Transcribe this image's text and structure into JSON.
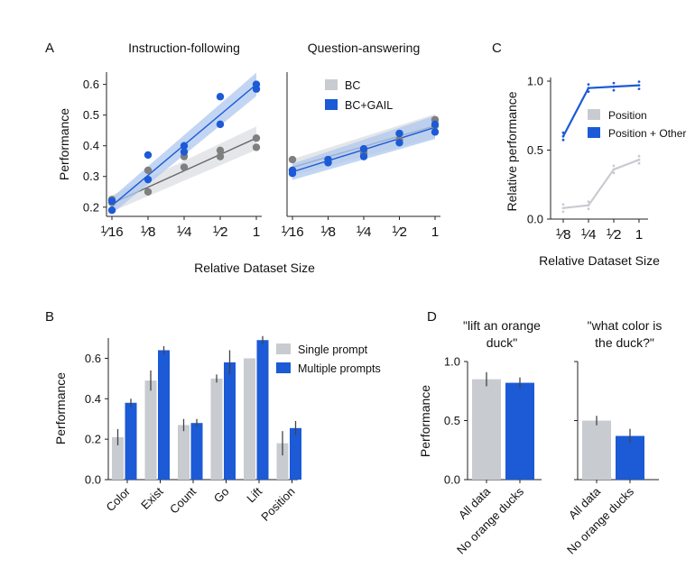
{
  "figure": {
    "x_axis_label_AC": "Relative Dataset Size"
  },
  "colors": {
    "light": "#c8cbd0",
    "blue": "#1c5ad6",
    "grey_dot": "#7f7f7f",
    "band_blue": "#aec8ef",
    "band_grey": "#dcdde1"
  },
  "chart_data": [
    {
      "panel": "A",
      "type": "scatter",
      "title": "Instruction-following",
      "ylabel": "Performance",
      "xscale": "log2",
      "xticks": [
        0.0625,
        0.125,
        0.25,
        0.5,
        1
      ],
      "xtick_labels": [
        "1/16",
        "1/8",
        "1/4",
        "1/2",
        "1"
      ],
      "yticks": [
        0.2,
        0.3,
        0.4,
        0.5,
        0.6
      ],
      "ylim": [
        0.17,
        0.64
      ],
      "series": [
        {
          "name": "BC",
          "color": "#7f7f7f",
          "fit": [
            0.212,
            0.425
          ],
          "points": [
            [
              0.0625,
              0.215
            ],
            [
              0.0625,
              0.225
            ],
            [
              0.125,
              0.25
            ],
            [
              0.125,
              0.32
            ],
            [
              0.25,
              0.33
            ],
            [
              0.25,
              0.365
            ],
            [
              0.5,
              0.365
            ],
            [
              0.5,
              0.385
            ],
            [
              1,
              0.395
            ],
            [
              1,
              0.425
            ]
          ]
        },
        {
          "name": "BC+GAIL",
          "color": "#1c5ad6",
          "fit": [
            0.205,
            0.6
          ],
          "points": [
            [
              0.0625,
              0.19
            ],
            [
              0.0625,
              0.22
            ],
            [
              0.125,
              0.29
            ],
            [
              0.125,
              0.37
            ],
            [
              0.25,
              0.38
            ],
            [
              0.25,
              0.4
            ],
            [
              0.5,
              0.47
            ],
            [
              0.5,
              0.56
            ],
            [
              1,
              0.585
            ],
            [
              1,
              0.6
            ]
          ]
        }
      ]
    },
    {
      "panel": "A",
      "type": "scatter",
      "title": "Question-answering",
      "xscale": "log2",
      "xticks": [
        0.0625,
        0.125,
        0.25,
        0.5,
        1
      ],
      "xtick_labels": [
        "1/16",
        "1/8",
        "1/4",
        "1/2",
        "1"
      ],
      "ylim": [
        0.17,
        0.64
      ],
      "legend": [
        "BC",
        "BC+GAIL"
      ],
      "legend_position": "top-left",
      "series": [
        {
          "name": "BC",
          "color": "#7f7f7f",
          "fit": [
            0.33,
            0.465
          ],
          "points": [
            [
              0.0625,
              0.32
            ],
            [
              0.0625,
              0.355
            ],
            [
              0.125,
              0.345
            ],
            [
              0.125,
              0.355
            ],
            [
              0.25,
              0.375
            ],
            [
              0.25,
              0.385
            ],
            [
              0.5,
              0.42
            ],
            [
              0.5,
              0.44
            ],
            [
              1,
              0.465
            ],
            [
              1,
              0.485
            ]
          ]
        },
        {
          "name": "BC+GAIL",
          "color": "#1c5ad6",
          "fit": [
            0.315,
            0.46
          ],
          "points": [
            [
              0.0625,
              0.31
            ],
            [
              0.0625,
              0.32
            ],
            [
              0.125,
              0.345
            ],
            [
              0.125,
              0.355
            ],
            [
              0.25,
              0.365
            ],
            [
              0.25,
              0.39
            ],
            [
              0.5,
              0.41
            ],
            [
              0.5,
              0.44
            ],
            [
              1,
              0.445
            ],
            [
              1,
              0.47
            ]
          ]
        }
      ]
    },
    {
      "panel": "C",
      "type": "line",
      "ylabel": "Relative performance",
      "xscale": "log2",
      "xticks": [
        0.125,
        0.25,
        0.5,
        1
      ],
      "xtick_labels": [
        "1/8",
        "1/4",
        "1/2",
        "1"
      ],
      "yticks": [
        0.0,
        0.5,
        1.0
      ],
      "ytick_labels": [
        "0.0",
        "0.5",
        "1.0"
      ],
      "ylim": [
        0.0,
        1.0
      ],
      "legend": [
        "Position",
        "Position + Other"
      ],
      "legend_position": "center-right",
      "series": [
        {
          "name": "Position",
          "color": "#c8cbd0",
          "x": [
            0.125,
            0.25,
            0.5,
            1
          ],
          "values": [
            0.08,
            0.1,
            0.36,
            0.43
          ]
        },
        {
          "name": "Position + Other",
          "color": "#1c5ad6",
          "x": [
            0.125,
            0.25,
            0.5,
            1
          ],
          "values": [
            0.6,
            0.95,
            0.96,
            0.97
          ]
        }
      ]
    },
    {
      "panel": "B",
      "type": "bar",
      "ylabel": "Performance",
      "categories": [
        "Color",
        "Exist",
        "Count",
        "Go",
        "Lift",
        "Position"
      ],
      "yticks": [
        0.0,
        0.2,
        0.4,
        0.6
      ],
      "ytick_labels": [
        "0.0",
        "0.2",
        "0.4",
        "0.6"
      ],
      "ylim": [
        0,
        0.7
      ],
      "legend": [
        "Single prompt",
        "Multiple prompts"
      ],
      "legend_position": "top-right",
      "series": [
        {
          "name": "Single prompt",
          "color": "#c8cbd0",
          "values": [
            0.21,
            0.49,
            0.27,
            0.5,
            0.6,
            0.18
          ],
          "err": [
            0.04,
            0.05,
            0.03,
            0.02,
            0.0,
            0.06
          ]
        },
        {
          "name": "Multiple prompts",
          "color": "#1c5ad6",
          "values": [
            0.38,
            0.64,
            0.28,
            0.58,
            0.69,
            0.255
          ],
          "err": [
            0.02,
            0.02,
            0.02,
            0.06,
            0.02,
            0.035
          ]
        }
      ]
    },
    {
      "panel": "D",
      "type": "bar",
      "title": "\"lift an orange\nduck\"",
      "ylabel": "Performance",
      "categories": [
        "All data",
        "No orange ducks"
      ],
      "yticks": [
        0.0,
        0.5,
        1.0
      ],
      "ytick_labels": [
        "0.0",
        "0.5",
        "1.0"
      ],
      "ylim": [
        0,
        1.0
      ],
      "colors": [
        "#c8cbd0",
        "#1c5ad6"
      ],
      "values": [
        0.85,
        0.82
      ],
      "err": [
        0.06,
        0.045
      ]
    },
    {
      "panel": "D",
      "type": "bar",
      "title": "\"what color is\nthe duck?\"",
      "categories": [
        "All data",
        "No orange ducks"
      ],
      "ylim": [
        0,
        1.0
      ],
      "colors": [
        "#c8cbd0",
        "#1c5ad6"
      ],
      "values": [
        0.5,
        0.37
      ],
      "err": [
        0.04,
        0.06
      ]
    }
  ]
}
